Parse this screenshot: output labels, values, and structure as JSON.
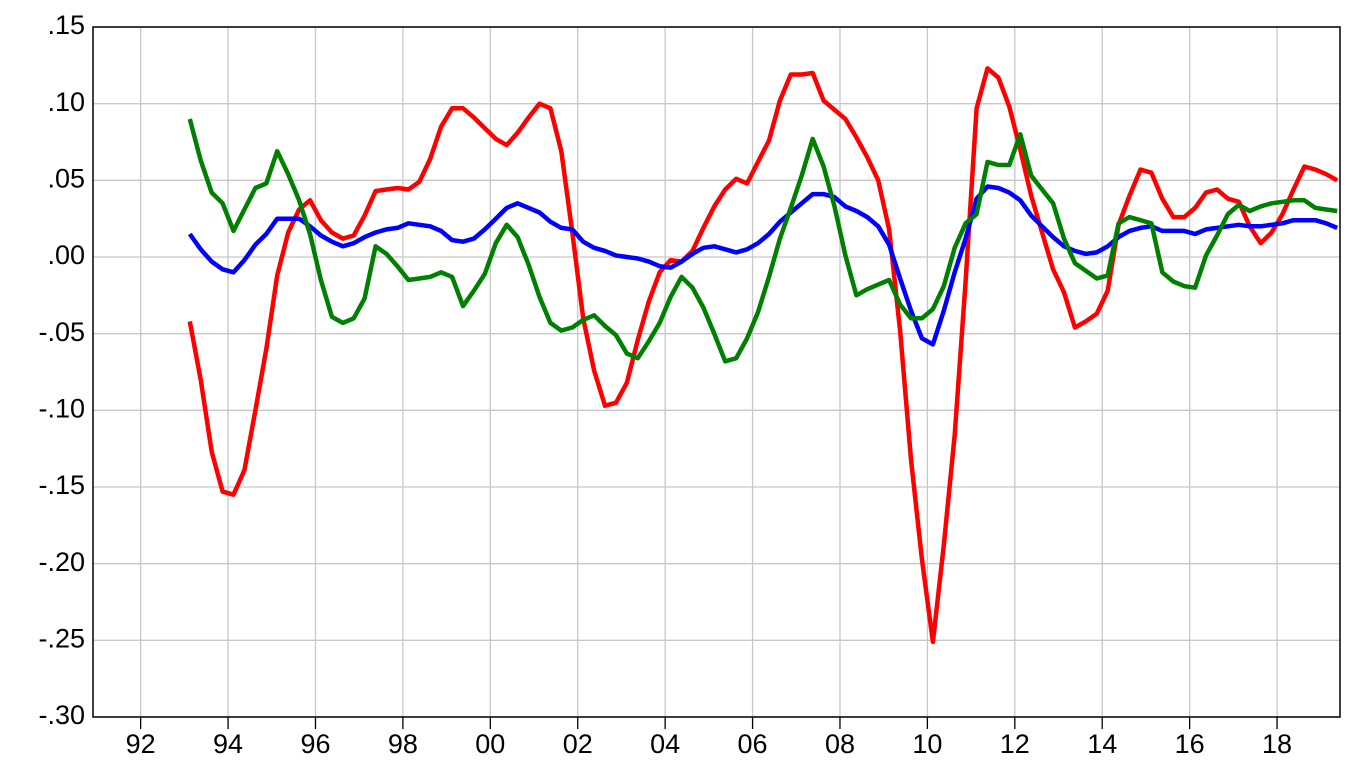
{
  "chart_data": {
    "type": "line",
    "x": [
      1993.125,
      1993.375,
      1993.625,
      1993.875,
      1994.125,
      1994.375,
      1994.625,
      1994.875,
      1995.125,
      1995.375,
      1995.625,
      1995.875,
      1996.125,
      1996.375,
      1996.625,
      1996.875,
      1997.125,
      1997.375,
      1997.625,
      1997.875,
      1998.125,
      1998.375,
      1998.625,
      1998.875,
      1999.125,
      1999.375,
      1999.625,
      1999.875,
      2000.125,
      2000.375,
      2000.625,
      2000.875,
      2001.125,
      2001.375,
      2001.625,
      2001.875,
      2002.125,
      2002.375,
      2002.625,
      2002.875,
      2003.125,
      2003.375,
      2003.625,
      2003.875,
      2004.125,
      2004.375,
      2004.625,
      2004.875,
      2005.125,
      2005.375,
      2005.625,
      2005.875,
      2006.125,
      2006.375,
      2006.625,
      2006.875,
      2007.125,
      2007.375,
      2007.625,
      2007.875,
      2008.125,
      2008.375,
      2008.625,
      2008.875,
      2009.125,
      2009.375,
      2009.625,
      2009.875,
      2010.125,
      2010.375,
      2010.625,
      2010.875,
      2011.125,
      2011.375,
      2011.625,
      2011.875,
      2012.125,
      2012.375,
      2012.625,
      2012.875,
      2013.125,
      2013.375,
      2013.625,
      2013.875,
      2014.125,
      2014.375,
      2014.625,
      2014.875,
      2015.125,
      2015.375,
      2015.625,
      2015.875,
      2016.125,
      2016.375,
      2016.625,
      2016.875,
      2017.125,
      2017.375,
      2017.625,
      2017.875,
      2018.125,
      2018.375,
      2018.625,
      2018.875,
      2019.125,
      2019.375
    ],
    "series": [
      {
        "color": "#ff0000",
        "values": [
          -0.042,
          -0.08,
          -0.127,
          -0.153,
          -0.155,
          -0.139,
          -0.1,
          -0.06,
          -0.012,
          0.016,
          0.031,
          0.037,
          0.024,
          0.016,
          0.012,
          0.014,
          0.027,
          0.043,
          0.044,
          0.045,
          0.044,
          0.049,
          0.064,
          0.085,
          0.097,
          0.097,
          0.091,
          0.084,
          0.077,
          0.073,
          0.081,
          0.091,
          0.1,
          0.097,
          0.069,
          0.016,
          -0.04,
          -0.074,
          -0.097,
          -0.095,
          -0.082,
          -0.054,
          -0.029,
          -0.01,
          -0.002,
          -0.003,
          0.004,
          0.019,
          0.033,
          0.044,
          0.051,
          0.048,
          0.062,
          0.076,
          0.102,
          0.119,
          0.119,
          0.12,
          0.102,
          0.096,
          0.09,
          0.078,
          0.065,
          0.05,
          0.018,
          -0.048,
          -0.132,
          -0.197,
          -0.251,
          -0.188,
          -0.116,
          -0.016,
          0.097,
          0.123,
          0.117,
          0.098,
          0.07,
          0.04,
          0.016,
          -0.008,
          -0.023,
          -0.046,
          -0.042,
          -0.037,
          -0.022,
          0.021,
          0.04,
          0.057,
          0.055,
          0.038,
          0.026,
          0.026,
          0.032,
          0.042,
          0.044,
          0.038,
          0.036,
          0.02,
          0.009,
          0.016,
          0.028,
          0.044,
          0.059,
          0.057,
          0.054,
          0.05
        ]
      },
      {
        "color": "#0000ff",
        "values": [
          0.015,
          0.005,
          -0.003,
          -0.008,
          -0.01,
          -0.002,
          0.008,
          0.015,
          0.025,
          0.025,
          0.025,
          0.02,
          0.014,
          0.01,
          0.007,
          0.009,
          0.013,
          0.016,
          0.018,
          0.019,
          0.022,
          0.021,
          0.02,
          0.017,
          0.011,
          0.01,
          0.012,
          0.018,
          0.025,
          0.032,
          0.035,
          0.032,
          0.029,
          0.023,
          0.019,
          0.018,
          0.01,
          0.006,
          0.004,
          0.001,
          0.0,
          -0.001,
          -0.003,
          -0.006,
          -0.007,
          -0.003,
          0.002,
          0.006,
          0.007,
          0.005,
          0.003,
          0.005,
          0.009,
          0.015,
          0.023,
          0.029,
          0.035,
          0.041,
          0.041,
          0.039,
          0.033,
          0.03,
          0.026,
          0.02,
          0.008,
          -0.014,
          -0.035,
          -0.053,
          -0.057,
          -0.035,
          -0.01,
          0.012,
          0.038,
          0.046,
          0.045,
          0.042,
          0.037,
          0.027,
          0.02,
          0.013,
          0.007,
          0.004,
          0.002,
          0.003,
          0.007,
          0.013,
          0.017,
          0.019,
          0.02,
          0.017,
          0.017,
          0.017,
          0.015,
          0.018,
          0.019,
          0.02,
          0.021,
          0.02,
          0.02,
          0.021,
          0.022,
          0.024,
          0.024,
          0.024,
          0.022,
          0.019
        ]
      },
      {
        "color": "#008000",
        "values": [
          0.09,
          0.063,
          0.042,
          0.035,
          0.017,
          0.031,
          0.045,
          0.048,
          0.069,
          0.054,
          0.037,
          0.015,
          -0.015,
          -0.039,
          -0.043,
          -0.04,
          -0.027,
          0.007,
          0.002,
          -0.006,
          -0.015,
          -0.014,
          -0.013,
          -0.01,
          -0.013,
          -0.032,
          -0.022,
          -0.011,
          0.009,
          0.021,
          0.013,
          -0.005,
          -0.026,
          -0.043,
          -0.048,
          -0.046,
          -0.041,
          -0.038,
          -0.045,
          -0.051,
          -0.063,
          -0.066,
          -0.055,
          -0.043,
          -0.026,
          -0.013,
          -0.02,
          -0.033,
          -0.05,
          -0.068,
          -0.066,
          -0.053,
          -0.036,
          -0.013,
          0.012,
          0.032,
          0.053,
          0.077,
          0.059,
          0.033,
          0.001,
          -0.025,
          -0.021,
          -0.018,
          -0.015,
          -0.031,
          -0.04,
          -0.04,
          -0.034,
          -0.019,
          0.006,
          0.022,
          0.028,
          0.062,
          0.06,
          0.06,
          0.08,
          0.053,
          0.044,
          0.035,
          0.012,
          -0.004,
          -0.009,
          -0.014,
          -0.012,
          0.022,
          0.026,
          0.024,
          0.022,
          -0.01,
          -0.016,
          -0.019,
          -0.02,
          0.001,
          0.014,
          0.028,
          0.034,
          0.03,
          0.033,
          0.035,
          0.036,
          0.037,
          0.037,
          0.032,
          0.031,
          0.03
        ]
      }
    ],
    "xlim": [
      1990.91,
      2019.44
    ],
    "xticks": [
      {
        "value": 1992,
        "label": "92"
      },
      {
        "value": 1994,
        "label": "94"
      },
      {
        "value": 1996,
        "label": "96"
      },
      {
        "value": 1998,
        "label": "98"
      },
      {
        "value": 2000,
        "label": "00"
      },
      {
        "value": 2002,
        "label": "02"
      },
      {
        "value": 2004,
        "label": "04"
      },
      {
        "value": 2006,
        "label": "06"
      },
      {
        "value": 2008,
        "label": "08"
      },
      {
        "value": 2010,
        "label": "10"
      },
      {
        "value": 2012,
        "label": "12"
      },
      {
        "value": 2014,
        "label": "14"
      },
      {
        "value": 2016,
        "label": "16"
      },
      {
        "value": 2018,
        "label": "18"
      }
    ],
    "ylim": [
      -0.3,
      0.15
    ],
    "yticks": [
      {
        "value": 0.15,
        "label": ".15"
      },
      {
        "value": 0.1,
        "label": ".10"
      },
      {
        "value": 0.05,
        "label": ".05"
      },
      {
        "value": 0,
        "label": ".00"
      },
      {
        "value": -0.05,
        "label": "-.05"
      },
      {
        "value": -0.1,
        "label": "-.10"
      },
      {
        "value": -0.15,
        "label": "-.15"
      },
      {
        "value": -0.2,
        "label": "-.20"
      },
      {
        "value": -0.25,
        "label": "-.25"
      },
      {
        "value": -0.3,
        "label": "-.30"
      }
    ],
    "grid": true
  }
}
